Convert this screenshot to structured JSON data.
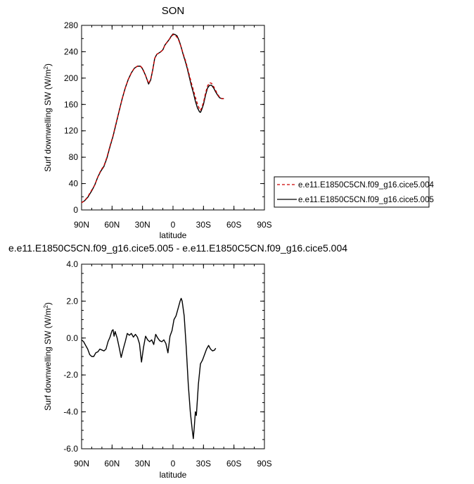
{
  "chart_data": [
    {
      "type": "line",
      "title": "SON",
      "xlabel": "latitude",
      "ylabel_main": "Surf downwelling SW (W/m",
      "ylabel_sup": "2",
      "ylabel_tail": ")",
      "xlim": [
        90,
        -90
      ],
      "ylim": [
        0,
        280
      ],
      "x_ticks": [
        90,
        60,
        30,
        0,
        -30,
        -60,
        -90
      ],
      "x_tick_labels": [
        "90N",
        "60N",
        "30N",
        "0",
        "30S",
        "60S",
        "90S"
      ],
      "y_ticks": [
        0,
        40,
        80,
        120,
        160,
        200,
        240,
        280
      ],
      "y_tick_labels": [
        "0",
        "40",
        "80",
        "120",
        "160",
        "200",
        "240",
        "280"
      ],
      "grid": false,
      "legend_position": "right",
      "series": [
        {
          "name": "e.e11.E1850C5CN.f09_g16.cice5.004",
          "color": "#cc0000",
          "dash": true,
          "points": [
            [
              90,
              11
            ],
            [
              87,
              14
            ],
            [
              84,
              20
            ],
            [
              80,
              30
            ],
            [
              77,
              38
            ],
            [
              74,
              50
            ],
            [
              71,
              60
            ],
            [
              68,
              67
            ],
            [
              65,
              80
            ],
            [
              62,
              97
            ],
            [
              59,
              113
            ],
            [
              56,
              132
            ],
            [
              53,
              150
            ],
            [
              50,
              169
            ],
            [
              47,
              185
            ],
            [
              44,
              198
            ],
            [
              41,
              208
            ],
            [
              38,
              215
            ],
            [
              35,
              218
            ],
            [
              32,
              218
            ],
            [
              30,
              215
            ],
            [
              27,
              204
            ],
            [
              24,
              192
            ],
            [
              22,
              198
            ],
            [
              20,
              212
            ],
            [
              18,
              230
            ],
            [
              16,
              236
            ],
            [
              14,
              238
            ],
            [
              12,
              240
            ],
            [
              10,
              243
            ],
            [
              8,
              250
            ],
            [
              6,
              254
            ],
            [
              4,
              258
            ],
            [
              2,
              262
            ],
            [
              0,
              266
            ],
            [
              -2,
              265
            ],
            [
              -4,
              262
            ],
            [
              -6,
              256
            ],
            [
              -8,
              247
            ],
            [
              -10,
              237
            ],
            [
              -12,
              228
            ],
            [
              -14,
              217
            ],
            [
              -16,
              205
            ],
            [
              -18,
              193
            ],
            [
              -20,
              182
            ],
            [
              -22,
              171
            ],
            [
              -24,
              161
            ],
            [
              -26,
              153
            ],
            [
              -27,
              151
            ],
            [
              -28,
              154
            ],
            [
              -30,
              163
            ],
            [
              -32,
              177
            ],
            [
              -34,
              188
            ],
            [
              -36,
              193
            ],
            [
              -38,
              192
            ],
            [
              -40,
              187
            ],
            [
              -42,
              181
            ],
            [
              -44,
              175
            ],
            [
              -46,
              171
            ],
            [
              -48,
              169
            ],
            [
              -50,
              169
            ]
          ]
        },
        {
          "name": "e.e11.E1850C5CN.f09_g16.cice5.005",
          "color": "#000000",
          "dash": false,
          "points": [
            [
              90,
              11
            ],
            [
              87,
              14
            ],
            [
              84,
              19
            ],
            [
              80,
              29
            ],
            [
              77,
              38
            ],
            [
              74,
              50
            ],
            [
              71,
              59
            ],
            [
              68,
              66
            ],
            [
              65,
              79
            ],
            [
              62,
              96
            ],
            [
              59,
              112
            ],
            [
              56,
              131
            ],
            [
              53,
              150
            ],
            [
              50,
              169
            ],
            [
              47,
              185
            ],
            [
              44,
              198
            ],
            [
              41,
              208
            ],
            [
              38,
              215
            ],
            [
              35,
              218
            ],
            [
              32,
              218
            ],
            [
              30,
              214
            ],
            [
              27,
              204
            ],
            [
              24,
              191
            ],
            [
              22,
              197
            ],
            [
              20,
              212
            ],
            [
              18,
              230
            ],
            [
              16,
              236
            ],
            [
              14,
              238
            ],
            [
              12,
              240
            ],
            [
              10,
              243
            ],
            [
              8,
              250
            ],
            [
              6,
              254
            ],
            [
              4,
              258
            ],
            [
              2,
              263
            ],
            [
              0,
              267
            ],
            [
              -2,
              266
            ],
            [
              -4,
              264
            ],
            [
              -6,
              257
            ],
            [
              -8,
              247
            ],
            [
              -10,
              236
            ],
            [
              -12,
              226
            ],
            [
              -14,
              215
            ],
            [
              -16,
              202
            ],
            [
              -18,
              189
            ],
            [
              -20,
              178
            ],
            [
              -22,
              165
            ],
            [
              -24,
              155
            ],
            [
              -26,
              149
            ],
            [
              -27,
              148
            ],
            [
              -28,
              151
            ],
            [
              -30,
              160
            ],
            [
              -32,
              174
            ],
            [
              -34,
              185
            ],
            [
              -36,
              189
            ],
            [
              -38,
              189
            ],
            [
              -40,
              185
            ],
            [
              -42,
              179
            ],
            [
              -44,
              174
            ],
            [
              -46,
              170
            ],
            [
              -48,
              169
            ],
            [
              -50,
              169
            ]
          ]
        }
      ]
    },
    {
      "type": "line",
      "title": "e.e11.E1850C5CN.f09_g16.cice5.005 - e.e11.E1850C5CN.f09_g16.cice5.004",
      "xlabel": "latitude",
      "ylabel_main": "Surf downwelling SW (W/m",
      "ylabel_sup": "2",
      "ylabel_tail": ")",
      "xlim": [
        90,
        -90
      ],
      "ylim": [
        -6.0,
        4.0
      ],
      "x_ticks": [
        90,
        60,
        30,
        0,
        -30,
        -60,
        -90
      ],
      "x_tick_labels": [
        "90N",
        "60N",
        "30N",
        "0",
        "30S",
        "60S",
        "90S"
      ],
      "y_ticks": [
        -6,
        -4,
        -2,
        0,
        2,
        4
      ],
      "y_tick_labels": [
        "-6.0",
        "-4.0",
        "-2.0",
        "0.0",
        "2.0",
        "4.0"
      ],
      "grid": false,
      "series": [
        {
          "color": "#000000",
          "dash": false,
          "points": [
            [
              90,
              -0.1
            ],
            [
              88,
              -0.2
            ],
            [
              86,
              -0.4
            ],
            [
              84,
              -0.6
            ],
            [
              82,
              -0.9
            ],
            [
              80,
              -1.0
            ],
            [
              78,
              -1.0
            ],
            [
              76,
              -0.8
            ],
            [
              74,
              -0.75
            ],
            [
              72,
              -0.6
            ],
            [
              70,
              -0.65
            ],
            [
              68,
              -0.7
            ],
            [
              66,
              -0.6
            ],
            [
              64,
              -0.2
            ],
            [
              62,
              0.05
            ],
            [
              60,
              0.4
            ],
            [
              59,
              0.45
            ],
            [
              58,
              0.1
            ],
            [
              57,
              0.35
            ],
            [
              55,
              0.0
            ],
            [
              53,
              -0.5
            ],
            [
              51,
              -1.05
            ],
            [
              49,
              -0.6
            ],
            [
              47,
              -0.2
            ],
            [
              45,
              0.25
            ],
            [
              43,
              0.15
            ],
            [
              41,
              0.25
            ],
            [
              39,
              0.05
            ],
            [
              37,
              0.2
            ],
            [
              35,
              0.05
            ],
            [
              33,
              -0.3
            ],
            [
              31,
              -1.3
            ],
            [
              29,
              -0.5
            ],
            [
              27,
              0.1
            ],
            [
              25,
              -0.1
            ],
            [
              23,
              -0.2
            ],
            [
              21,
              -0.1
            ],
            [
              19,
              -0.35
            ],
            [
              17,
              0.2
            ],
            [
              15,
              0.0
            ],
            [
              13,
              -0.15
            ],
            [
              11,
              -0.2
            ],
            [
              9,
              -0.1
            ],
            [
              7,
              -0.3
            ],
            [
              5,
              -0.8
            ],
            [
              3,
              0.1
            ],
            [
              1,
              0.4
            ],
            [
              -1,
              1.0
            ],
            [
              -3,
              1.2
            ],
            [
              -5,
              1.6
            ],
            [
              -7,
              2.0
            ],
            [
              -8,
              2.15
            ],
            [
              -9,
              2.0
            ],
            [
              -11,
              1.2
            ],
            [
              -13,
              -0.5
            ],
            [
              -15,
              -2.5
            ],
            [
              -17,
              -4.0
            ],
            [
              -19,
              -5.0
            ],
            [
              -20,
              -5.45
            ],
            [
              -21,
              -4.8
            ],
            [
              -22,
              -4.0
            ],
            [
              -23,
              -4.2
            ],
            [
              -25,
              -2.5
            ],
            [
              -27,
              -1.4
            ],
            [
              -29,
              -1.2
            ],
            [
              -31,
              -0.9
            ],
            [
              -33,
              -0.6
            ],
            [
              -35,
              -0.4
            ],
            [
              -37,
              -0.6
            ],
            [
              -39,
              -0.7
            ],
            [
              -41,
              -0.65
            ],
            [
              -42,
              -0.55
            ]
          ]
        }
      ]
    }
  ]
}
